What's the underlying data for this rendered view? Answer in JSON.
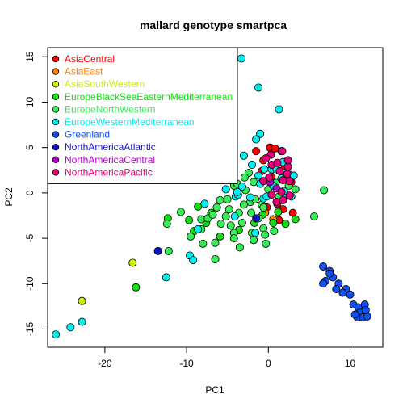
{
  "chart_data": {
    "type": "scatter",
    "title": "mallard genotype smartpca",
    "xlabel": "PC1",
    "ylabel": "PC2",
    "xlim": [
      -27,
      14
    ],
    "ylim": [
      -17,
      16
    ],
    "x_ticks": [
      -20,
      -10,
      0,
      10
    ],
    "y_ticks": [
      -15,
      -10,
      -5,
      0,
      5,
      10,
      15
    ],
    "x_tick_labels": [
      "-20",
      "-10",
      "0",
      "10"
    ],
    "y_tick_labels": [
      "-15",
      "-10",
      "-5",
      "0",
      "5",
      "10",
      "15"
    ],
    "grid": false,
    "legend_position": "top-left",
    "series": [
      {
        "name": "AsiaCentral",
        "color": "#ff0000",
        "points": [
          [
            -1.5,
            4.6
          ],
          [
            0.2,
            5.0
          ],
          [
            0.8,
            4.9
          ],
          [
            1.6,
            4.6
          ],
          [
            -0.6,
            3.6
          ],
          [
            2.0,
            3.0
          ],
          [
            0.4,
            1.8
          ],
          [
            -0.8,
            2.4
          ],
          [
            2.8,
            1.2
          ],
          [
            3.0,
            -2.2
          ],
          [
            1.3,
            -3.0
          ],
          [
            1.8,
            -1.8
          ],
          [
            -0.2,
            -1.6
          ],
          [
            1.1,
            -1.2
          ]
        ]
      },
      {
        "name": "AsiaEast",
        "color": "#ff8000",
        "points": [
          [
            0.6,
            -2.9
          ],
          [
            -0.4,
            -2.2
          ]
        ]
      },
      {
        "name": "AsiaSouthWestern",
        "color": "#c8f000",
        "points": [
          [
            -22.8,
            -11.9
          ],
          [
            -16.6,
            -7.7
          ]
        ]
      },
      {
        "name": "EuropeBlackSeaEasternMediterranean",
        "color": "#10e010",
        "points": [
          [
            -12.3,
            -2.8
          ],
          [
            -9.7,
            -3.0
          ],
          [
            -9.1,
            -4.2
          ],
          [
            -7.6,
            -3.3
          ],
          [
            -5.9,
            -4.8
          ],
          [
            -3.6,
            -4.1
          ],
          [
            -1.7,
            -3.3
          ],
          [
            0.6,
            -3.3
          ],
          [
            2.1,
            -3.4
          ],
          [
            3.3,
            -2.9
          ],
          [
            -0.7,
            -2.4
          ],
          [
            -8.6,
            -1.5
          ],
          [
            -7.0,
            -2.2
          ],
          [
            1.2,
            -2.1
          ],
          [
            -16.2,
            -10.4
          ]
        ]
      },
      {
        "name": "EuropeNorthWestern",
        "color": "#33ee55",
        "points": [
          [
            -9.5,
            -4.8
          ],
          [
            -8.0,
            -5.6
          ],
          [
            -6.5,
            -5.5
          ],
          [
            -4.2,
            -4.4
          ],
          [
            -2.0,
            -4.4
          ],
          [
            -0.6,
            -3.9
          ],
          [
            0.7,
            -4.2
          ],
          [
            5.6,
            -2.6
          ],
          [
            6.8,
            0.3
          ],
          [
            -12.4,
            -3.4
          ],
          [
            -12.2,
            -6.4
          ],
          [
            -4.2,
            -5.0
          ],
          [
            -6.5,
            -7.3
          ],
          [
            -3.5,
            -6.0
          ],
          [
            -1.8,
            -5.2
          ],
          [
            -0.3,
            -5.6
          ],
          [
            -0.4,
            -4.6
          ],
          [
            -6.3,
            -1.6
          ],
          [
            -4.8,
            -1.8
          ],
          [
            -3.6,
            -2.2
          ],
          [
            -2.2,
            -1.0
          ],
          [
            -1.6,
            -0.7
          ],
          [
            -0.8,
            -1.3
          ],
          [
            -5.0,
            -0.7
          ],
          [
            -4.2,
            0.8
          ],
          [
            -2.8,
            0.3
          ],
          [
            -1.8,
            1.2
          ],
          [
            -2.4,
            2.2
          ],
          [
            -4.8,
            2.6
          ],
          [
            -3.2,
            -3.3
          ],
          [
            -2.1,
            -2.2
          ],
          [
            -0.6,
            -1.6
          ],
          [
            0.0,
            0.4
          ],
          [
            2.5,
            0.8
          ],
          [
            3.3,
            0.4
          ],
          [
            0.9,
            1.1
          ],
          [
            -5.8,
            -3.4
          ],
          [
            -5.2,
            -2.6
          ],
          [
            -4.6,
            -3.6
          ],
          [
            -8.2,
            -2.9
          ],
          [
            -10.7,
            -2.1
          ],
          [
            -8.2,
            -4.0
          ],
          [
            -7.4,
            -2.8
          ],
          [
            -3.0,
            -1.3
          ],
          [
            -3.8,
            1.0
          ],
          [
            -2.9,
            1.7
          ],
          [
            -5.9,
            -0.8
          ],
          [
            -6.8,
            -2.4
          ],
          [
            -1.2,
            -2.8
          ],
          [
            1.3,
            -0.4
          ]
        ]
      },
      {
        "name": "EuropeWesternMediterranean",
        "color": "#00f0f0",
        "points": [
          [
            -3.3,
            14.8
          ],
          [
            -1.2,
            11.6
          ],
          [
            1.3,
            9.2
          ],
          [
            -1.0,
            6.5
          ],
          [
            -1.5,
            5.9
          ],
          [
            -3.0,
            4.1
          ],
          [
            -2.0,
            3.1
          ],
          [
            -0.5,
            2.6
          ],
          [
            0.4,
            2.6
          ],
          [
            1.8,
            3.4
          ],
          [
            -1.0,
            1.0
          ],
          [
            0.6,
            0.8
          ],
          [
            1.6,
            1.6
          ],
          [
            2.6,
            2.0
          ],
          [
            -2.2,
            -0.5
          ],
          [
            -0.6,
            -0.6
          ],
          [
            2.3,
            -0.3
          ],
          [
            -4.0,
            -0.4
          ],
          [
            -7.8,
            -1.2
          ],
          [
            -8.6,
            -4.0
          ],
          [
            -9.6,
            -6.9
          ],
          [
            -12.5,
            -9.3
          ],
          [
            -22.8,
            -14.2
          ],
          [
            -24.2,
            -14.8
          ],
          [
            -26.0,
            -15.6
          ],
          [
            -3.7,
            -0.2
          ],
          [
            -3.2,
            0.7
          ],
          [
            -1.2,
            1.9
          ],
          [
            -0.2,
            -0.4
          ],
          [
            1.9,
            0.2
          ],
          [
            2.8,
            -0.4
          ],
          [
            -9.2,
            -7.4
          ],
          [
            -4.1,
            -2.6
          ],
          [
            -1.6,
            -4.4
          ],
          [
            1.0,
            2.6
          ],
          [
            3.1,
            1.9
          ],
          [
            -5.2,
            0.4
          ],
          [
            -3.8,
            0.1
          ]
        ]
      },
      {
        "name": "Greenland",
        "color": "#1050f0",
        "points": [
          [
            6.7,
            -8.1
          ],
          [
            7.5,
            -8.6
          ],
          [
            7.0,
            -9.7
          ],
          [
            6.7,
            -10.0
          ],
          [
            7.9,
            -9.3
          ],
          [
            8.6,
            -10.0
          ],
          [
            8.3,
            -10.6
          ],
          [
            9.5,
            -10.6
          ],
          [
            9.1,
            -11.0
          ],
          [
            10.0,
            -11.2
          ],
          [
            10.4,
            -12.3
          ],
          [
            11.0,
            -12.6
          ],
          [
            11.8,
            -12.3
          ],
          [
            11.2,
            -13.2
          ],
          [
            10.9,
            -13.7
          ],
          [
            11.6,
            -13.7
          ],
          [
            12.1,
            -13.6
          ],
          [
            11.9,
            -12.9
          ],
          [
            10.6,
            -13.4
          ],
          [
            7.5,
            -8.9
          ]
        ]
      },
      {
        "name": "NorthAmericaAtlantic",
        "color": "#1010c8",
        "points": [
          [
            -13.5,
            -6.4
          ],
          [
            -1.5,
            -2.8
          ]
        ]
      },
      {
        "name": "NorthAmericaCentral",
        "color": "#b000c8",
        "points": [
          [
            0.2,
            1.2
          ],
          [
            1.0,
            0.5
          ]
        ]
      },
      {
        "name": "NorthAmericaPacific",
        "color": "#e8007a",
        "points": [
          [
            0.3,
            4.2
          ],
          [
            1.7,
            4.6
          ],
          [
            0.4,
            3.1
          ],
          [
            1.4,
            2.4
          ],
          [
            2.4,
            2.9
          ],
          [
            0.1,
            1.7
          ],
          [
            2.6,
            1.3
          ],
          [
            1.6,
            0.1
          ],
          [
            0.4,
            -0.2
          ],
          [
            1.0,
            -1.0
          ],
          [
            1.8,
            -0.8
          ],
          [
            2.6,
            -0.3
          ],
          [
            2.4,
            3.6
          ],
          [
            1.8,
            1.4
          ],
          [
            -0.3,
            3.8
          ],
          [
            2.3,
            2.1
          ],
          [
            -0.6,
            1.3
          ],
          [
            1.1,
            3.3
          ]
        ]
      }
    ]
  }
}
